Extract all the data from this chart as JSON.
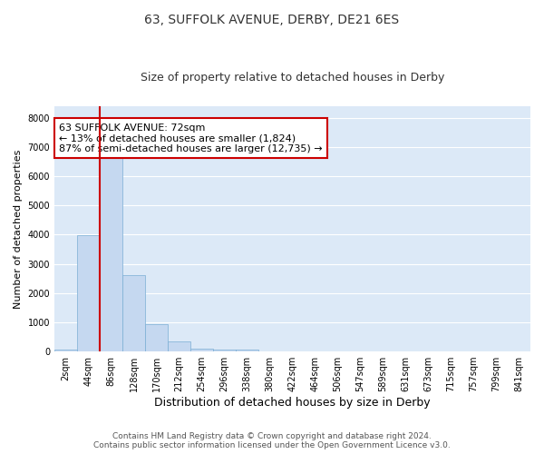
{
  "title": "63, SUFFOLK AVENUE, DERBY, DE21 6ES",
  "subtitle": "Size of property relative to detached houses in Derby",
  "xlabel": "Distribution of detached houses by size in Derby",
  "ylabel": "Number of detached properties",
  "footer_line1": "Contains HM Land Registry data © Crown copyright and database right 2024.",
  "footer_line2": "Contains public sector information licensed under the Open Government Licence v3.0.",
  "annotation_line1": "63 SUFFOLK AVENUE: 72sqm",
  "annotation_line2": "← 13% of detached houses are smaller (1,824)",
  "annotation_line3": "87% of semi-detached houses are larger (12,735) →",
  "categories": [
    "2sqm",
    "44sqm",
    "86sqm",
    "128sqm",
    "170sqm",
    "212sqm",
    "254sqm",
    "296sqm",
    "338sqm",
    "380sqm",
    "422sqm",
    "464sqm",
    "506sqm",
    "547sqm",
    "589sqm",
    "631sqm",
    "673sqm",
    "715sqm",
    "757sqm",
    "799sqm",
    "841sqm"
  ],
  "values": [
    50,
    3980,
    6620,
    2620,
    950,
    330,
    100,
    70,
    50,
    0,
    0,
    0,
    0,
    0,
    0,
    0,
    0,
    0,
    0,
    0,
    0
  ],
  "bar_color": "#c5d8f0",
  "bar_edge_color": "#7aaed4",
  "ylim": [
    0,
    8400
  ],
  "yticks": [
    0,
    1000,
    2000,
    3000,
    4000,
    5000,
    6000,
    7000,
    8000
  ],
  "plot_bg_color": "#dce9f7",
  "fig_bg_color": "#ffffff",
  "grid_color": "#ffffff",
  "annotation_box_fill": "#ffffff",
  "annotation_box_edge": "#cc0000",
  "red_line_color": "#cc0000",
  "title_fontsize": 10,
  "subtitle_fontsize": 9,
  "xlabel_fontsize": 9,
  "ylabel_fontsize": 8,
  "tick_fontsize": 7,
  "annotation_fontsize": 8,
  "footer_fontsize": 6.5
}
